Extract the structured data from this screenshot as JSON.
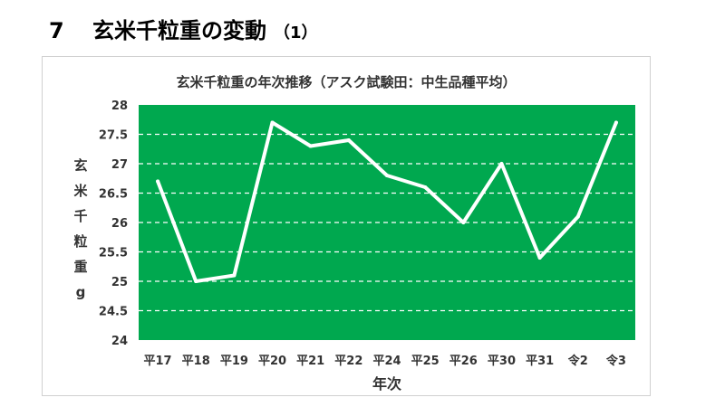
{
  "heading": {
    "number": "7",
    "title": "玄米千粒重の変動",
    "suffix": "（1）"
  },
  "chart_data": {
    "type": "line",
    "title": "玄米千粒重の年次推移（アスク試験田：中生品種平均）",
    "xlabel": "年次",
    "ylabel": "玄米千粒重g",
    "categories": [
      "平17",
      "平18",
      "平19",
      "平20",
      "平21",
      "平22",
      "平24",
      "平25",
      "平26",
      "平30",
      "平31",
      "令2",
      "令3"
    ],
    "series": [
      {
        "values": [
          26.7,
          25.0,
          25.1,
          27.7,
          27.3,
          27.4,
          26.8,
          26.6,
          26.0,
          27.0,
          25.4,
          26.1,
          27.7
        ]
      }
    ],
    "ylim": [
      24,
      28
    ],
    "yticks": [
      "24",
      "24.5",
      "25",
      "25.5",
      "26",
      "26.5",
      "27",
      "27.5",
      "28"
    ],
    "grid": true,
    "plot_background": "#00a84f",
    "line_color": "#ffffff"
  }
}
